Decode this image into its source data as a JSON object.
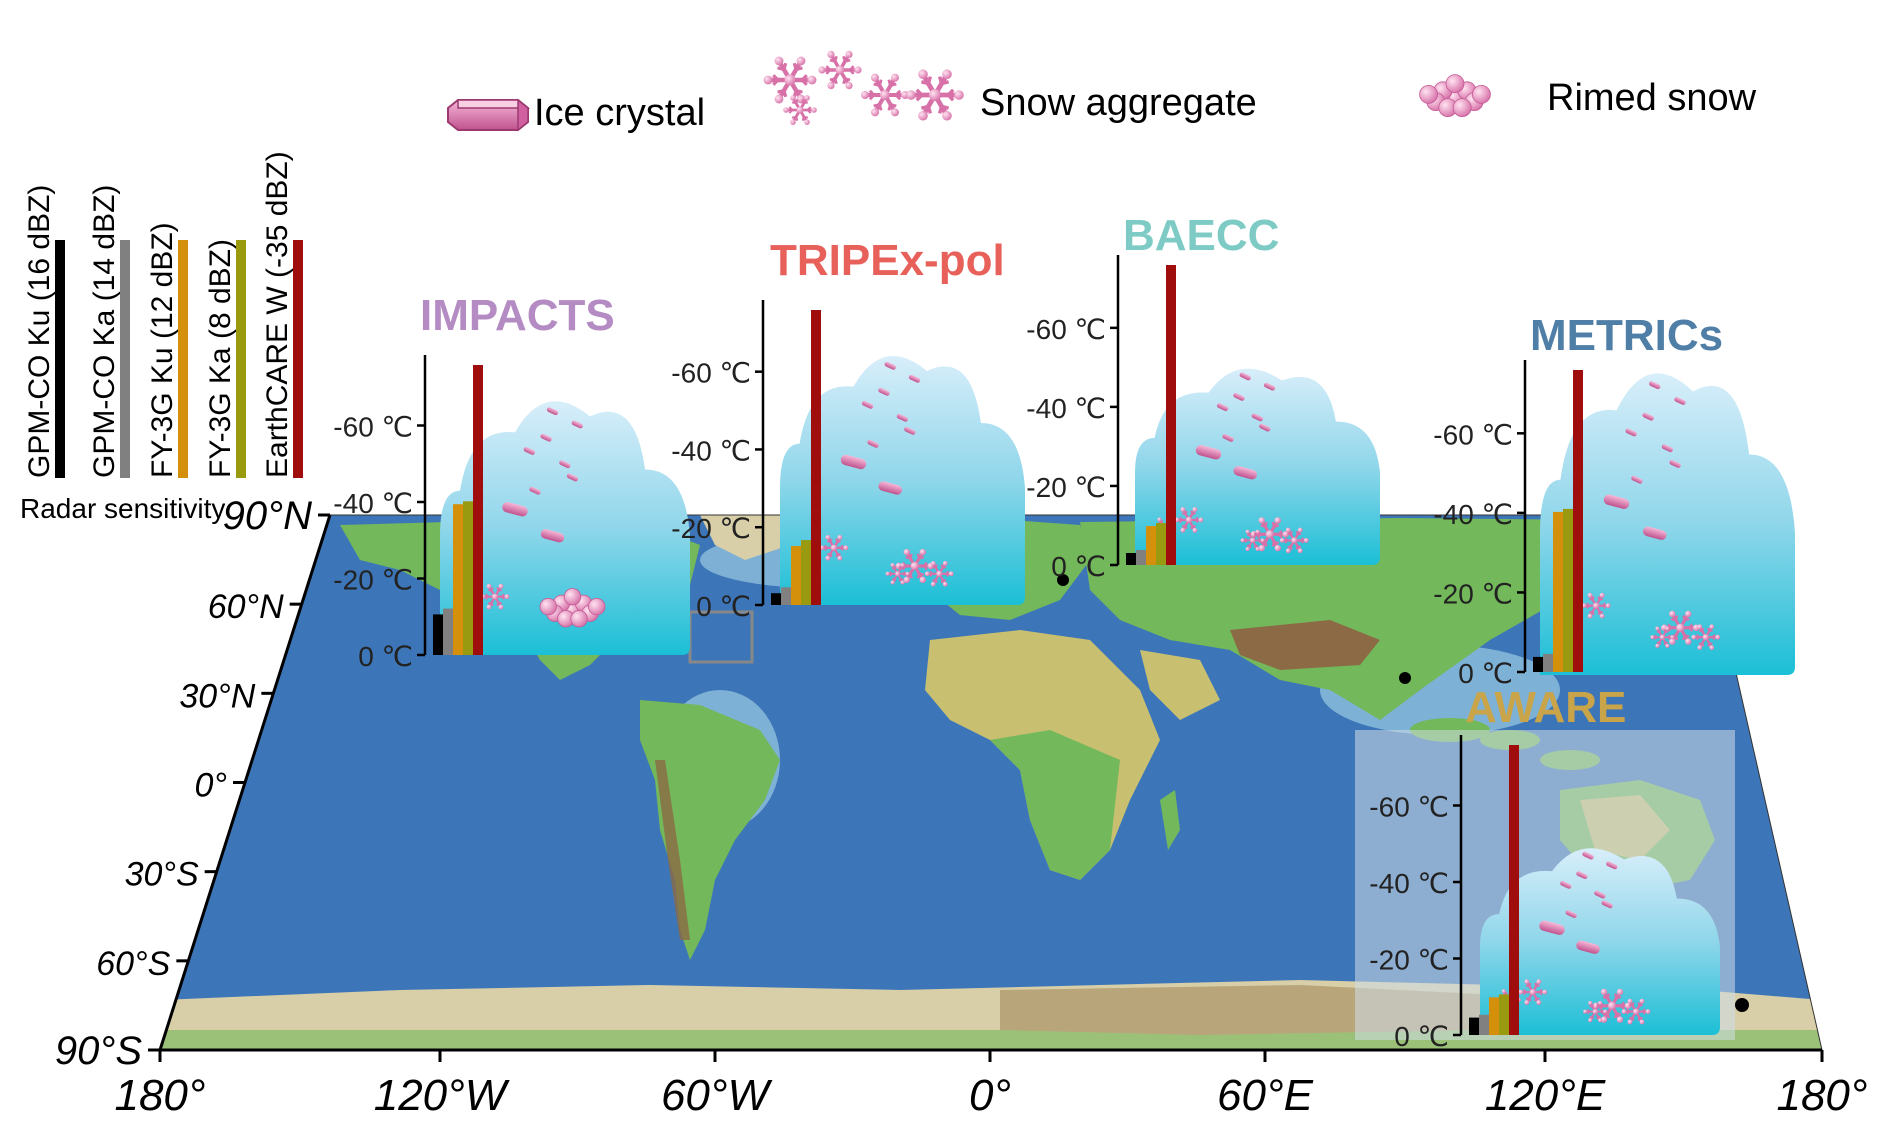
{
  "legend": {
    "particles": [
      {
        "label": "Ice crystal"
      },
      {
        "label": "Snow aggregate"
      },
      {
        "label": "Rimed snow"
      }
    ],
    "radars": [
      {
        "label": "GPM-CO Ku (16 dBZ)",
        "color": "#000000",
        "dbz": 16
      },
      {
        "label": "GPM-CO Ka (14 dBZ)",
        "color": "#808080",
        "dbz": 14
      },
      {
        "label": "FY-3G Ku (12 dBZ)",
        "color": "#d4900a",
        "dbz": 12
      },
      {
        "label": "FY-3G Ka (8 dBZ)",
        "color": "#9a9a10",
        "dbz": 8
      },
      {
        "label": "EarthCARE W (-35 dBZ)",
        "color": "#a00d0d",
        "dbz": -35
      }
    ],
    "radar_title": "Radar sensitivity"
  },
  "map": {
    "x_ticks": [
      "180°",
      "120°W",
      "60°W",
      "0°",
      "60°E",
      "120°E",
      "180°"
    ],
    "y_ticks": [
      "90°N",
      "60°N",
      "30°N",
      "0°",
      "30°S",
      "60°S",
      "90°S"
    ],
    "colors": {
      "ocean": "#3d76b8",
      "shelf": "#8fc0dd",
      "land": "#73b85a",
      "highland": "#c8c070",
      "mountain": "#8b6a45",
      "ice": "#d8cfa8"
    }
  },
  "campaigns": [
    {
      "name": "IMPACTS",
      "color": "#b58bc3",
      "bars": [
        0.14,
        0.16,
        0.52,
        0.53,
        1.0
      ]
    },
    {
      "name": "TRIPEx-pol",
      "color": "#e8605a",
      "bars": [
        0.04,
        0.06,
        0.2,
        0.22,
        1.0
      ]
    },
    {
      "name": "BAECC",
      "color": "#7ecbc6",
      "bars": [
        0.04,
        0.05,
        0.13,
        0.14,
        1.0
      ]
    },
    {
      "name": "METRICs",
      "color": "#4f7fa6",
      "bars": [
        0.05,
        0.06,
        0.53,
        0.54,
        1.0
      ]
    },
    {
      "name": "AWARE",
      "color": "#c9a448",
      "bars": [
        0.06,
        0.07,
        0.13,
        0.14,
        1.0
      ]
    }
  ],
  "temperature_ticks": [
    "-60 ℃",
    "-40 ℃",
    "-20 ℃",
    "0 ℃"
  ]
}
